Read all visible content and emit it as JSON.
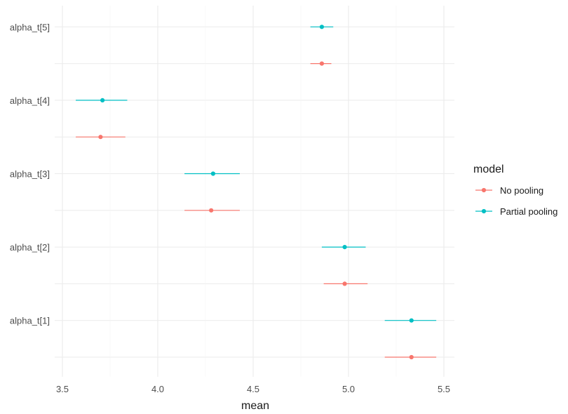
{
  "chart_data": {
    "type": "scatter",
    "xlabel": "mean",
    "ylabel": "",
    "xlim": [
      3.5,
      5.5
    ],
    "x_ticks": [
      "3.5",
      "4.0",
      "4.5",
      "5.0",
      "5.5"
    ],
    "categories": [
      "alpha_t[1]",
      "alpha_t[2]",
      "alpha_t[3]",
      "alpha_t[4]",
      "alpha_t[5]"
    ],
    "grid": true,
    "legend": {
      "title": "model",
      "placement": "right"
    },
    "series": [
      {
        "name": "No pooling",
        "color": "#f8766d",
        "points": [
          {
            "category": "alpha_t[1]",
            "mean": 5.33,
            "lower": 5.19,
            "upper": 5.46
          },
          {
            "category": "alpha_t[2]",
            "mean": 4.98,
            "lower": 4.87,
            "upper": 5.1
          },
          {
            "category": "alpha_t[3]",
            "mean": 4.28,
            "lower": 4.14,
            "upper": 4.43
          },
          {
            "category": "alpha_t[4]",
            "mean": 3.7,
            "lower": 3.57,
            "upper": 3.83
          },
          {
            "category": "alpha_t[5]",
            "mean": 4.86,
            "lower": 4.8,
            "upper": 4.91
          }
        ]
      },
      {
        "name": "Partial pooling",
        "color": "#00bfc4",
        "points": [
          {
            "category": "alpha_t[1]",
            "mean": 5.33,
            "lower": 5.19,
            "upper": 5.46
          },
          {
            "category": "alpha_t[2]",
            "mean": 4.98,
            "lower": 4.86,
            "upper": 5.09
          },
          {
            "category": "alpha_t[3]",
            "mean": 4.29,
            "lower": 4.14,
            "upper": 4.43
          },
          {
            "category": "alpha_t[4]",
            "mean": 3.71,
            "lower": 3.57,
            "upper": 3.84
          },
          {
            "category": "alpha_t[5]",
            "mean": 4.86,
            "lower": 4.8,
            "upper": 4.92
          }
        ]
      }
    ]
  }
}
